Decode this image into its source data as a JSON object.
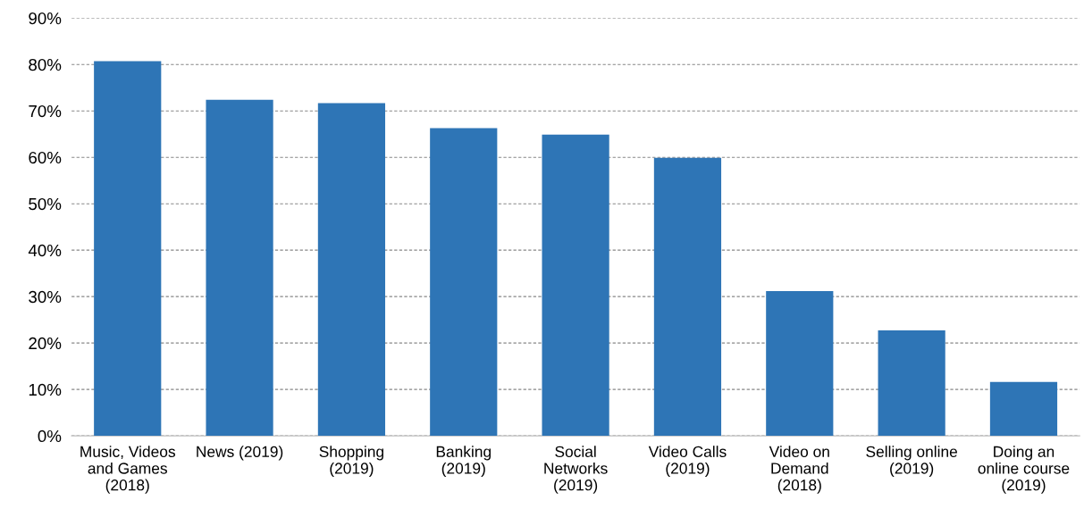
{
  "chart_data": {
    "type": "bar",
    "categories": [
      "Music, Videos\nand Games\n(2018)",
      "News (2019)",
      "Shopping\n(2019)",
      "Banking\n(2019)",
      "Social\nNetworks\n(2019)",
      "Video Calls\n(2019)",
      "Video on\nDemand\n(2018)",
      "Selling online\n(2019)",
      "Doing an\nonline course\n(2019)"
    ],
    "values": [
      80.7,
      72.4,
      71.7,
      66.3,
      64.9,
      59.9,
      31.2,
      22.7,
      11.6
    ],
    "color": "#2e75b6",
    "ylim": [
      0,
      90
    ],
    "yticks": [
      {
        "value": 0,
        "label": "0%"
      },
      {
        "value": 10,
        "label": "10%"
      },
      {
        "value": 20,
        "label": "20%"
      },
      {
        "value": 30,
        "label": "30%"
      },
      {
        "value": 40,
        "label": "40%"
      },
      {
        "value": 50,
        "label": "50%"
      },
      {
        "value": 60,
        "label": "60%"
      },
      {
        "value": 70,
        "label": "70%"
      },
      {
        "value": 80,
        "label": "80%"
      },
      {
        "value": 90,
        "label": "90%"
      }
    ],
    "grid": "y"
  }
}
